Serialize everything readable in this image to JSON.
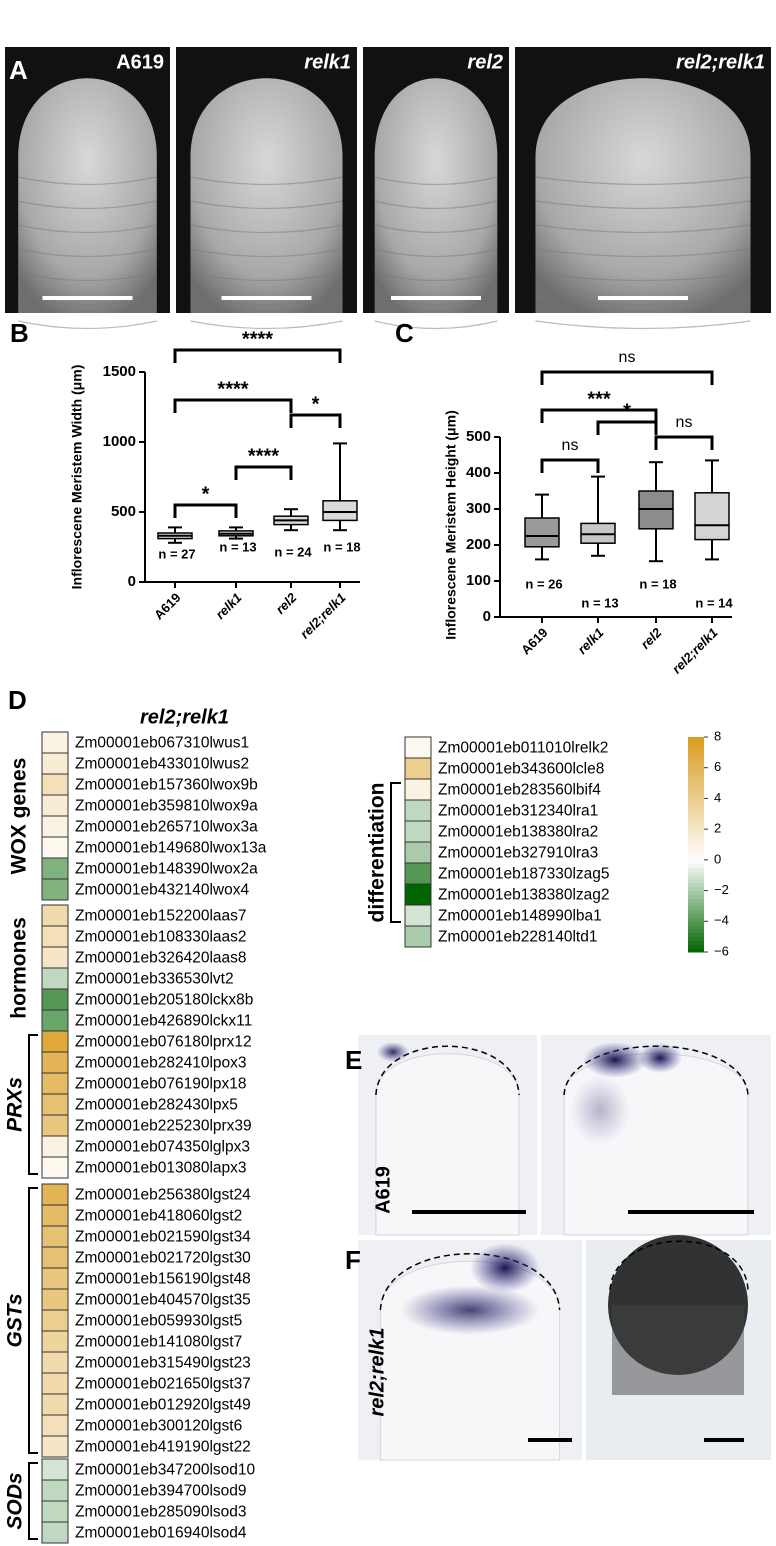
{
  "panel_a": {
    "label": "A",
    "images": [
      "A619",
      "relk1",
      "rel2",
      "rel2;relk1"
    ]
  },
  "chart_data": [
    {
      "type": "box",
      "panel": "B",
      "ylabel": "Inflorescene Meristem Width (μm)",
      "categories": [
        "A619",
        "relk1",
        "rel2",
        "rel2;relk1"
      ],
      "boxes": [
        {
          "min": 280,
          "q1": 310,
          "median": 330,
          "q3": 350,
          "max": 390
        },
        {
          "min": 310,
          "q1": 330,
          "median": 345,
          "q3": 365,
          "max": 390
        },
        {
          "min": 370,
          "q1": 410,
          "median": 440,
          "q3": 470,
          "max": 520
        },
        {
          "min": 370,
          "q1": 440,
          "median": 500,
          "q3": 580,
          "max": 990
        }
      ],
      "box_colors": [
        "#d9d9d9",
        "#d9d9d9",
        "#d9d9d9",
        "#d9d9d9"
      ],
      "n_labels": [
        "n = 27",
        "n = 13",
        "n = 24",
        "n = 18"
      ],
      "comparisons": [
        {
          "from": 0,
          "to": 3,
          "label": "****"
        },
        {
          "from": 0,
          "to": 2,
          "label": "****"
        },
        {
          "from": 2,
          "to": 3,
          "label": "*"
        },
        {
          "from": 1,
          "to": 2,
          "label": "****"
        },
        {
          "from": 0,
          "to": 1,
          "label": "*"
        }
      ],
      "ylim": [
        0,
        1500
      ],
      "yticks": [
        0,
        500,
        1000,
        1500
      ]
    },
    {
      "type": "box",
      "panel": "C",
      "ylabel": "Inflorescene Meristem Height (μm)",
      "categories": [
        "A619",
        "relk1",
        "rel2",
        "rel2;relk1"
      ],
      "boxes": [
        {
          "min": 160,
          "q1": 195,
          "median": 225,
          "q3": 275,
          "max": 340
        },
        {
          "min": 170,
          "q1": 205,
          "median": 230,
          "q3": 260,
          "max": 390
        },
        {
          "min": 155,
          "q1": 245,
          "median": 300,
          "q3": 350,
          "max": 430
        },
        {
          "min": 160,
          "q1": 215,
          "median": 255,
          "q3": 345,
          "max": 435
        }
      ],
      "box_colors": [
        "#9a9a9a",
        "#c8c8c8",
        "#8c8c8c",
        "#d4d4d4"
      ],
      "n_labels": [
        "n = 26",
        "n = 13",
        "n = 18",
        "n = 14"
      ],
      "comparisons": [
        {
          "from": 0,
          "to": 3,
          "label": "ns"
        },
        {
          "from": 0,
          "to": 2,
          "label": "***"
        },
        {
          "from": 1,
          "to": 2,
          "label": "*"
        },
        {
          "from": 2,
          "to": 3,
          "label": "ns"
        },
        {
          "from": 0,
          "to": 1,
          "label": "ns"
        }
      ],
      "ylim": [
        0,
        500
      ],
      "yticks": [
        0,
        100,
        200,
        300,
        400,
        500
      ]
    },
    {
      "type": "heatmap",
      "panel": "D",
      "title": "rel2;relk1",
      "colors": {
        "low": "#006400",
        "mid": "#ffffff",
        "high": "#d99c1f"
      },
      "groups": [
        {
          "label": "WOX genes",
          "rows": [
            "Zm00001eb067310lwus1",
            "Zm00001eb433010lwus2",
            "Zm00001eb157360lwox9b",
            "Zm00001eb359810lwox9a",
            "Zm00001eb265710lwox3a",
            "Zm00001eb149680lwox13a",
            "Zm00001eb148390lwox2a",
            "Zm00001eb432140lwox4"
          ],
          "values": [
            1,
            1.5,
            2.5,
            1.5,
            1,
            0.5,
            -3,
            -3
          ]
        },
        {
          "label": "hormones",
          "rows": [
            "Zm00001eb152200laas7",
            "Zm00001eb108330laas2",
            "Zm00001eb326420laas8",
            "Zm00001eb336530lvt2",
            "Zm00001eb205180lckx8b",
            "Zm00001eb426890lckx11"
          ],
          "values": [
            3,
            2.5,
            2,
            -1.5,
            -4,
            -3.5
          ]
        },
        {
          "label": "PRXs",
          "rows": [
            "Zm00001eb076180lprx12",
            "Zm00001eb282410lpox3",
            "Zm00001eb076190lpx18",
            "Zm00001eb282430lpx5",
            "Zm00001eb225230lprx39",
            "Zm00001eb074350lglpx3",
            "Zm00001eb013080lapx3"
          ],
          "values": [
            7,
            6,
            5.5,
            5,
            4.5,
            1,
            0.5
          ]
        },
        {
          "label": "GSTs",
          "rows": [
            "Zm00001eb256380lgst24",
            "Zm00001eb418060lgst2",
            "Zm00001eb021590lgst34",
            "Zm00001eb021720lgst30",
            "Zm00001eb156190lgst48",
            "Zm00001eb404570lgst35",
            "Zm00001eb059930lgst5",
            "Zm00001eb141080lgst7",
            "Zm00001eb315490lgst23",
            "Zm00001eb021650lgst37",
            "Zm00001eb012920lgst49",
            "Zm00001eb300120lgst6",
            "Zm00001eb419190lgst22"
          ],
          "values": [
            6,
            5.5,
            5,
            5,
            4.5,
            4.5,
            4,
            3.5,
            3,
            3,
            3,
            2.5,
            2
          ]
        },
        {
          "label": "SODs",
          "rows": [
            "Zm00001eb347200lsod10",
            "Zm00001eb394700lsod9",
            "Zm00001eb285090lsod3",
            "Zm00001eb016940lsod4"
          ],
          "values": [
            -1,
            -1.5,
            -1.5,
            -1.5
          ]
        },
        {
          "label": "differentiation",
          "rows": [
            "Zm00001eb011010lrelk2",
            "Zm00001eb343600lcle8",
            "Zm00001eb283560lbif4",
            "Zm00001eb312340lra1",
            "Zm00001eb138380lra2",
            "Zm00001eb327910lra3",
            "Zm00001eb187330lzag5",
            "Zm00001eb138380lzag2",
            "Zm00001eb148990lba1",
            "Zm00001eb228140ltd1"
          ],
          "values": [
            0.5,
            4,
            1,
            -1.5,
            -1.5,
            -2,
            -4,
            -6,
            -1,
            -2
          ]
        }
      ],
      "clim": [
        -6,
        8
      ],
      "cticks": [
        8,
        6,
        4,
        2,
        0,
        {
          "value": -2,
          "label": "−2"
        },
        {
          "value": -4,
          "label": "−4"
        },
        {
          "value": -6,
          "label": "−6"
        }
      ]
    }
  ],
  "panel_e": {
    "label": "E",
    "genotype": "A619"
  },
  "panel_f": {
    "label": "F",
    "genotype": "rel2;relk1"
  }
}
